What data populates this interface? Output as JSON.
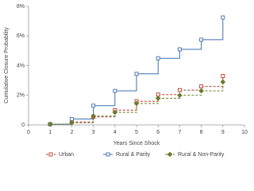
{
  "chart_data": {
    "type": "step",
    "x_label": "Years Since Shock",
    "y_label": "Cumulative Closure Probability",
    "x": [
      1,
      2,
      3,
      4,
      5,
      6,
      7,
      8,
      9
    ],
    "series": [
      {
        "name": "Urban",
        "color": "#c0392b",
        "marker": "square",
        "dash": true,
        "values": [
          0.05,
          0.2,
          0.55,
          1.0,
          1.6,
          2.05,
          2.35,
          2.6,
          3.3
        ]
      },
      {
        "name": "Rural & Parity",
        "color": "#3f6fb0",
        "marker": "square",
        "dash": false,
        "values": [
          0.05,
          0.4,
          1.3,
          2.3,
          3.45,
          4.5,
          5.1,
          5.75,
          7.25
        ]
      },
      {
        "name": "Rural & Non-Parity",
        "color": "#6b7a2a",
        "marker": "diamond",
        "dash": true,
        "values": [
          0.05,
          0.15,
          0.6,
          0.85,
          1.45,
          1.8,
          2.0,
          2.3,
          2.9
        ]
      }
    ],
    "xlim": [
      0,
      10
    ],
    "xticks": [
      0,
      1,
      2,
      3,
      4,
      5,
      6,
      7,
      8,
      9,
      10
    ],
    "ylim": [
      0,
      8
    ],
    "yticks": [
      0,
      {
        "value": 2,
        "label": "2%"
      },
      {
        "value": 4,
        "label": "4%"
      },
      {
        "value": 6,
        "label": "6%"
      },
      {
        "value": 8,
        "label": "8%"
      }
    ],
    "legend": "bottom"
  }
}
